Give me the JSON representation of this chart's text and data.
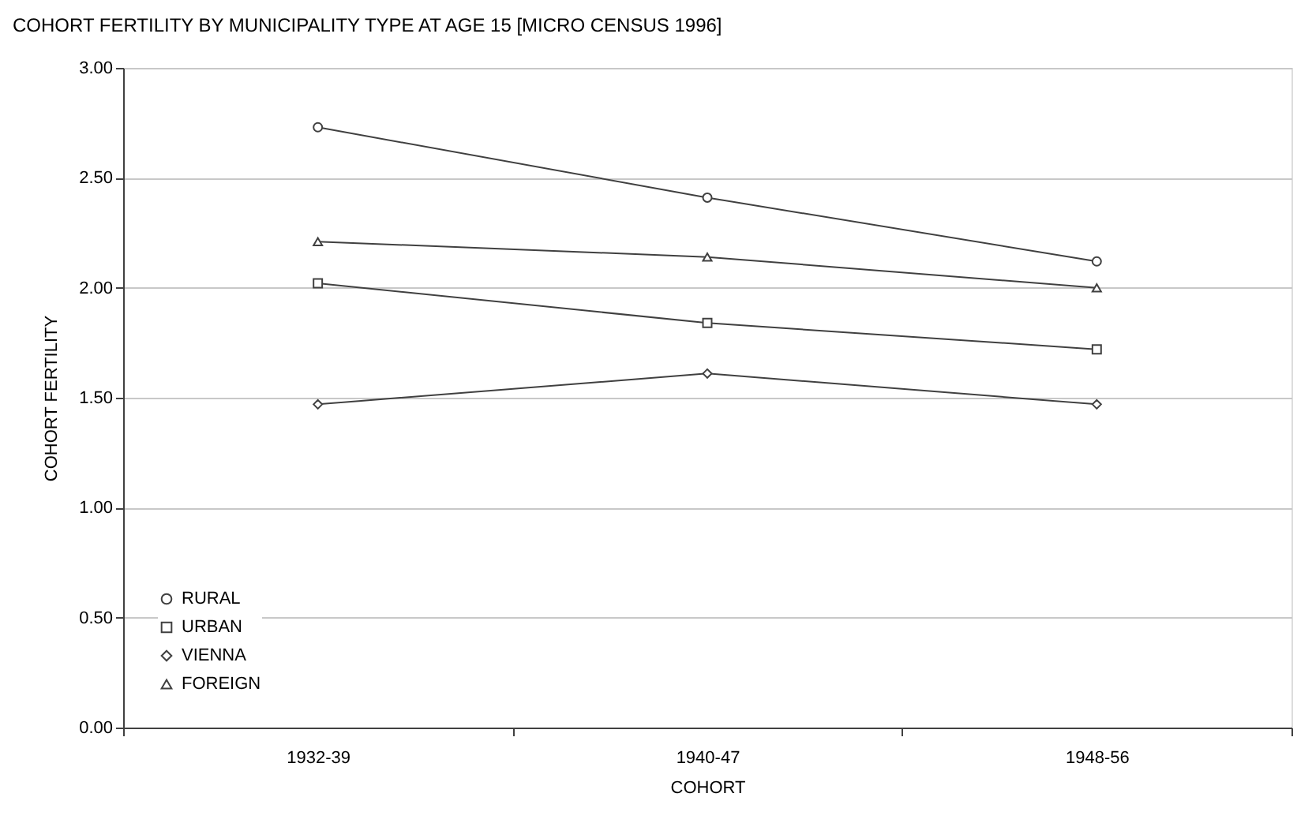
{
  "chart_data": {
    "type": "line",
    "title": "COHORT FERTILITY BY MUNICIPALITY TYPE AT AGE 15 [MICRO CENSUS 1996]",
    "xlabel": "COHORT",
    "ylabel": "COHORT FERTILITY",
    "categories": [
      "1932-39",
      "1940-47",
      "1948-56"
    ],
    "series": [
      {
        "name": "RURAL",
        "color": "#404040",
        "marker": "circle",
        "values": [
          2.73,
          2.41,
          2.12
        ]
      },
      {
        "name": "URBAN",
        "color": "#404040",
        "marker": "square",
        "values": [
          2.02,
          1.84,
          1.72
        ]
      },
      {
        "name": "VIENNA",
        "color": "#404040",
        "marker": "diamond",
        "values": [
          1.47,
          1.61,
          1.47
        ]
      },
      {
        "name": "FOREIGN",
        "color": "#404040",
        "marker": "triangle",
        "values": [
          2.21,
          2.14,
          2.0
        ]
      }
    ],
    "ylim": [
      0,
      3
    ],
    "yticks": [
      {
        "value": 0,
        "label": "0.00"
      },
      {
        "value": 0.5,
        "label": "0.50"
      },
      {
        "value": 1,
        "label": "1.00"
      },
      {
        "value": 1.5,
        "label": "1.50"
      },
      {
        "value": 2,
        "label": "2.00"
      },
      {
        "value": 2.5,
        "label": "2.50"
      },
      {
        "value": 3,
        "label": "3.00"
      }
    ],
    "grid": "y",
    "legend": "bottom left",
    "line_style": "solid"
  }
}
